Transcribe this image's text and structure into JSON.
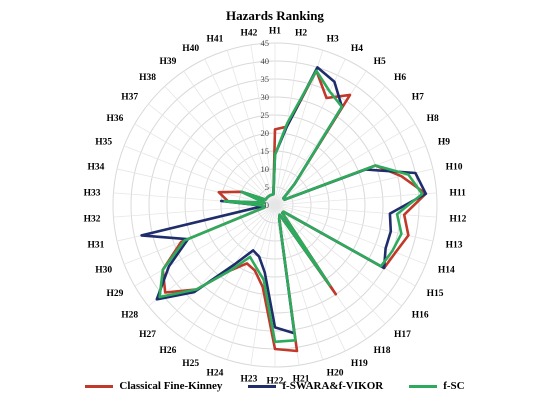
{
  "chart_data": {
    "type": "radar",
    "title": "Hazards Ranking",
    "categories": [
      "H1",
      "H2",
      "H3",
      "H4",
      "H5",
      "H6",
      "H7",
      "H8",
      "H9",
      "H10",
      "H11",
      "H12",
      "H13",
      "H14",
      "H15",
      "H16",
      "H17",
      "H18",
      "H19",
      "H20",
      "H21",
      "H22",
      "H23",
      "H24",
      "H25",
      "H26",
      "H27",
      "H28",
      "H29",
      "H30",
      "H31",
      "H32",
      "H33",
      "H34",
      "H35",
      "H36",
      "H37",
      "H38",
      "H39",
      "H40",
      "H41",
      "H42"
    ],
    "r_ticks": [
      0,
      5,
      10,
      15,
      20,
      25,
      30,
      35,
      40,
      45
    ],
    "rlim": [
      0,
      45
    ],
    "legend_position": "bottom",
    "series": [
      {
        "name": "Classical Fine-Kinney",
        "color": "#c0392b",
        "values": [
          21,
          22,
          39,
          33,
          37,
          8,
          3,
          3,
          30,
          36,
          42,
          36,
          38,
          36,
          35,
          3,
          3,
          30,
          3,
          4,
          41,
          40,
          23,
          19,
          18,
          22,
          32,
          39,
          36,
          28,
          3,
          3,
          13,
          16,
          10,
          3,
          3,
          3,
          3,
          3,
          3,
          3
        ]
      },
      {
        "name": "f-SWARA&f-VIKOR",
        "color": "#1f2d6b",
        "values": [
          14,
          22,
          40,
          38,
          33,
          8,
          3,
          3,
          27,
          40,
          42,
          32,
          33,
          33,
          35,
          3,
          3,
          26,
          3,
          4,
          36,
          34,
          19,
          15,
          14,
          20,
          33,
          42,
          34,
          26,
          38,
          3,
          15,
          3,
          10,
          3,
          3,
          3,
          3,
          3,
          3,
          3
        ]
      },
      {
        "name": "f-SC",
        "color": "#2eaa5c",
        "values": [
          14,
          23,
          39,
          35,
          33,
          8,
          3,
          3,
          30,
          38,
          41,
          34,
          36,
          35,
          34,
          3,
          3,
          27,
          3,
          4,
          38,
          38,
          21,
          18,
          16,
          22,
          32,
          41,
          36,
          27,
          3,
          3,
          14,
          3,
          10,
          3,
          3,
          3,
          3,
          3,
          3,
          3
        ]
      }
    ]
  }
}
